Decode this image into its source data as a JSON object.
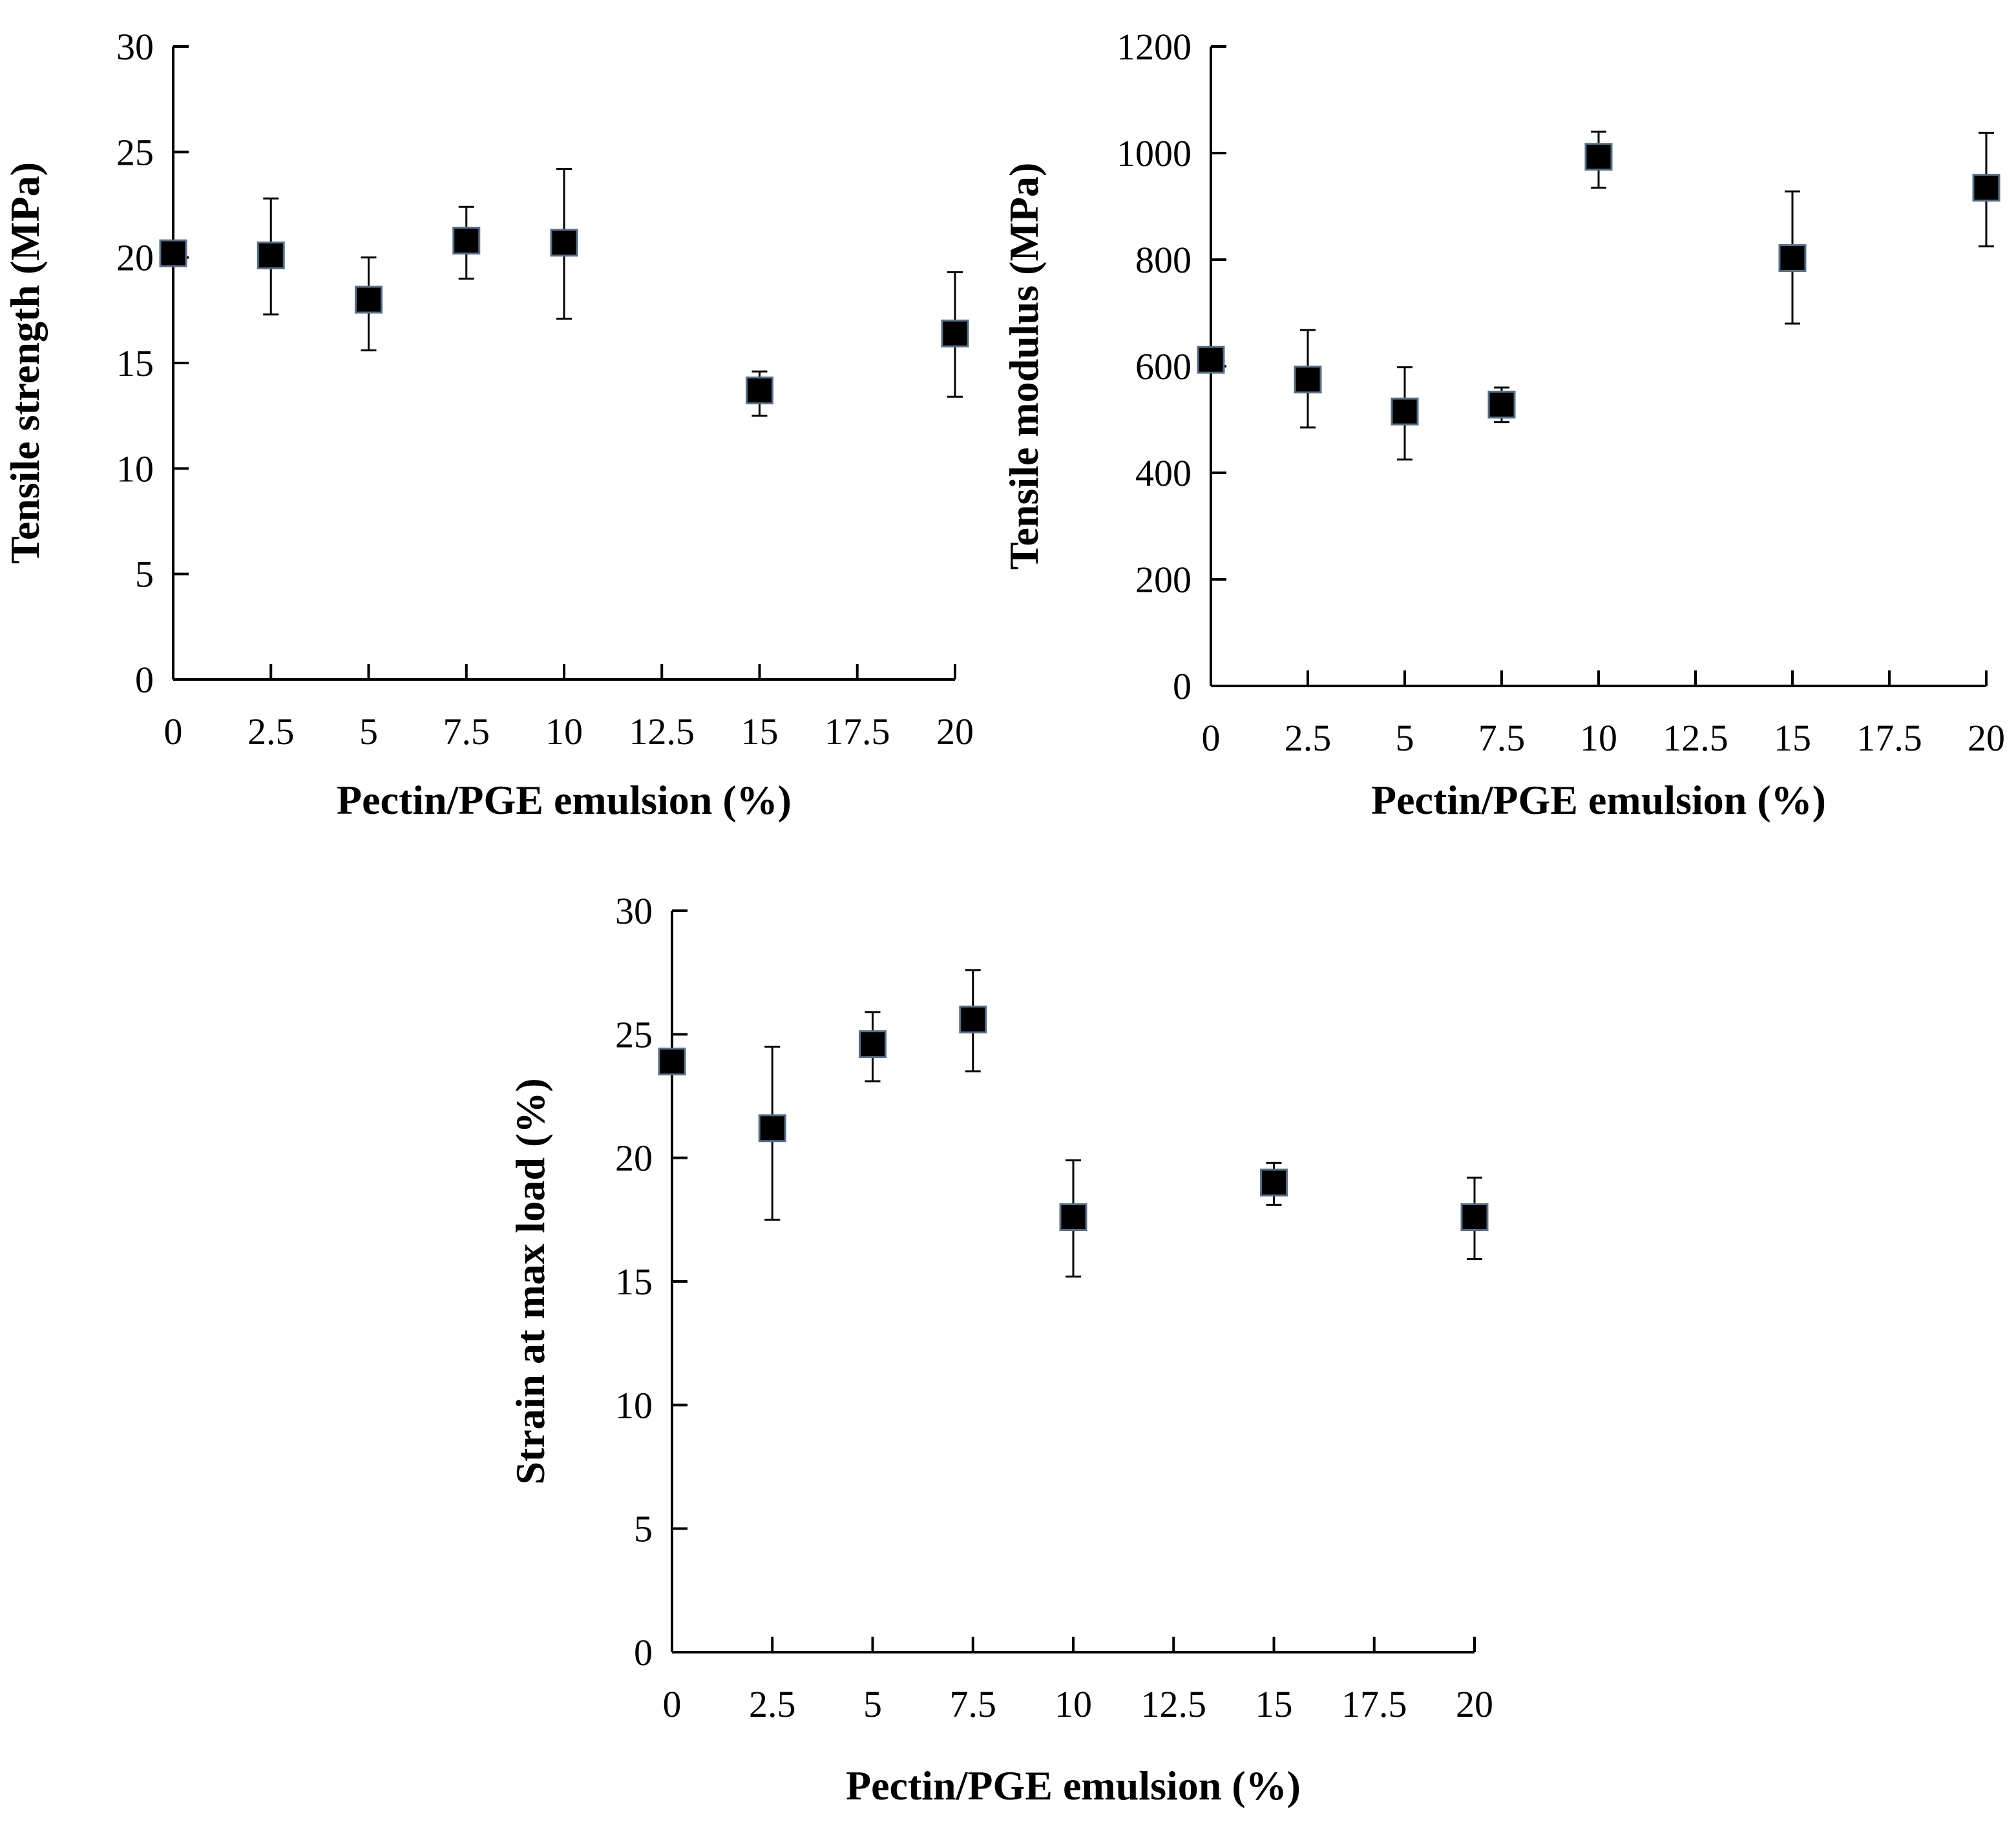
{
  "chart_data": [
    {
      "type": "scatter",
      "title": "",
      "xlabel": "Pectin/PGE emulsion (%)",
      "ylabel": "Tensile strength  (MPa)",
      "x_ticks": [
        "0",
        "2.5",
        "5",
        "7.5",
        "10",
        "12.5",
        "15",
        "17.5",
        "20"
      ],
      "y_ticks": [
        "0",
        "5",
        "10",
        "15",
        "20",
        "25",
        "30"
      ],
      "xlim": [
        0,
        20
      ],
      "ylim": [
        0,
        30
      ],
      "series": [
        {
          "name": "Tensile strength",
          "x": [
            0,
            2.5,
            5,
            7.5,
            10,
            15,
            20
          ],
          "y": [
            20.2,
            20.1,
            18.0,
            20.8,
            20.7,
            13.7,
            16.4
          ],
          "err_low": [
            20.2,
            17.3,
            15.6,
            19.0,
            17.1,
            12.5,
            13.4
          ],
          "err_high": [
            20.2,
            22.8,
            20.0,
            22.4,
            24.2,
            14.6,
            19.3
          ]
        }
      ]
    },
    {
      "type": "scatter",
      "title": "",
      "xlabel": "Pectin/PGE emulsion (%)",
      "ylabel": "Tensile modulus  (MPa)",
      "x_ticks": [
        "0",
        "2.5",
        "5",
        "7.5",
        "10",
        "12.5",
        "15",
        "17.5",
        "20"
      ],
      "y_ticks": [
        "0",
        "200",
        "400",
        "600",
        "800",
        "1000",
        "1200"
      ],
      "xlim": [
        0,
        20
      ],
      "ylim": [
        0,
        1200
      ],
      "series": [
        {
          "name": "Tensile modulus",
          "x": [
            0,
            2.5,
            5,
            7.5,
            10,
            15,
            20
          ],
          "y": [
            612,
            575,
            515,
            528,
            993,
            803,
            935
          ],
          "err_low": [
            612,
            485,
            425,
            495,
            935,
            680,
            825
          ],
          "err_high": [
            612,
            668,
            598,
            560,
            1040,
            928,
            1038
          ]
        }
      ]
    },
    {
      "type": "scatter",
      "title": "",
      "xlabel": "Pectin/PGE emulsion (%)",
      "ylabel": "Strain at max load (%)",
      "x_ticks": [
        "0",
        "2.5",
        "5",
        "7.5",
        "10",
        "12.5",
        "15",
        "17.5",
        "20"
      ],
      "y_ticks": [
        "0",
        "5",
        "10",
        "15",
        "20",
        "25",
        "30"
      ],
      "xlim": [
        0,
        20
      ],
      "ylim": [
        0,
        30
      ],
      "series": [
        {
          "name": "Strain at max load",
          "x": [
            0,
            2.5,
            5,
            7.5,
            10,
            15,
            20
          ],
          "y": [
            23.9,
            21.2,
            24.6,
            25.6,
            17.6,
            19.0,
            17.6
          ],
          "err_low": [
            23.9,
            17.5,
            23.1,
            23.5,
            15.2,
            18.1,
            15.9
          ],
          "err_high": [
            23.9,
            24.5,
            25.9,
            27.6,
            19.9,
            19.8,
            19.2
          ]
        }
      ]
    }
  ]
}
